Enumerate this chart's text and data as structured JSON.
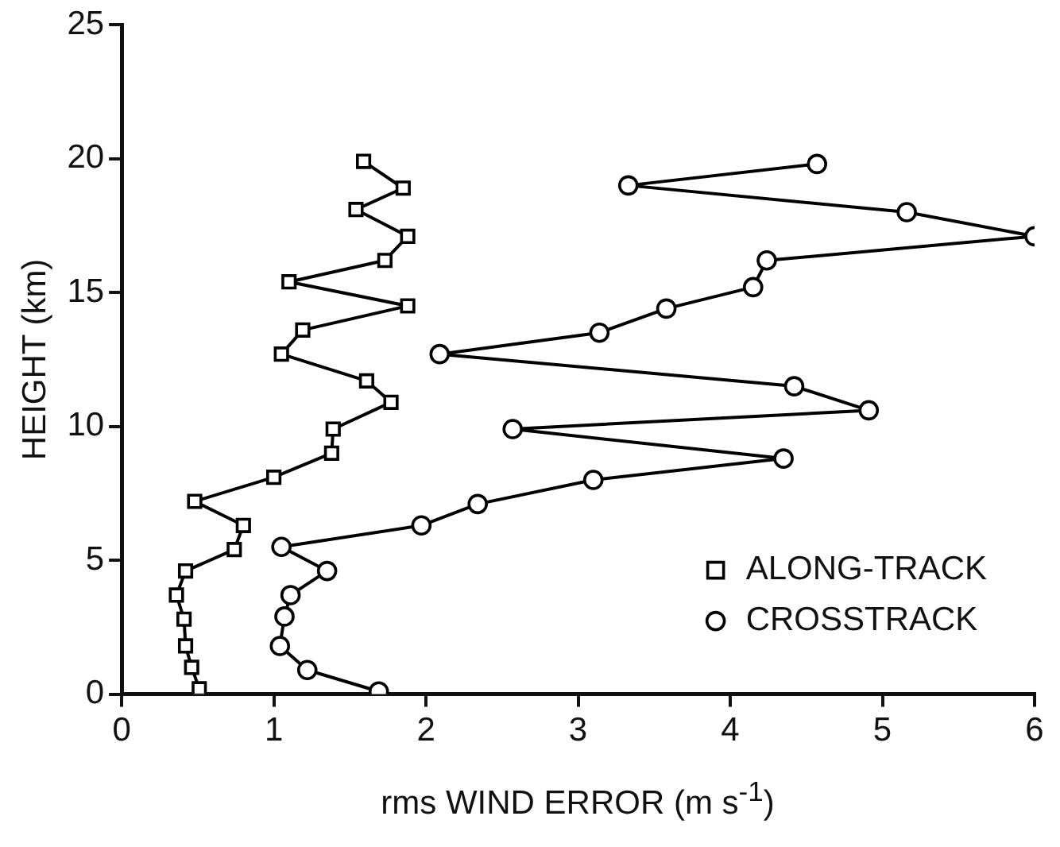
{
  "chart_data": {
    "type": "line",
    "xlabel": "rms WIND ERROR (m s$^{-1}$)",
    "ylabel": "HEIGHT (km)",
    "xlim": [
      0,
      6
    ],
    "xticks": [
      0,
      1,
      2,
      3,
      4,
      5,
      6
    ],
    "ylim": [
      0,
      25
    ],
    "yticks": [
      0,
      5,
      10,
      15,
      20,
      25
    ],
    "grid": false,
    "legend": "bottom right",
    "line_style": "solid",
    "series": [
      {
        "name": "ALONG-TRACK",
        "color": "#000000",
        "marker": "square",
        "x": [
          0.51,
          0.46,
          0.42,
          0.41,
          0.36,
          0.42,
          0.74,
          0.8,
          0.48,
          1.0,
          1.38,
          1.39,
          1.77,
          1.61,
          1.05,
          1.19,
          1.88,
          1.1,
          1.73,
          1.88,
          1.54,
          1.85,
          1.59
        ],
        "values": [
          0.2,
          1.0,
          1.8,
          2.8,
          3.7,
          4.6,
          5.4,
          6.3,
          7.2,
          8.1,
          9.0,
          9.9,
          10.9,
          11.7,
          12.7,
          13.6,
          14.5,
          15.4,
          16.2,
          17.1,
          18.1,
          18.9,
          19.9
        ]
      },
      {
        "name": "CROSSTRACK",
        "color": "#000000",
        "marker": "circle",
        "x": [
          1.69,
          1.22,
          1.04,
          1.07,
          1.11,
          1.35,
          1.05,
          1.97,
          2.34,
          3.1,
          4.35,
          2.57,
          4.91,
          4.42,
          2.09,
          3.14,
          3.58,
          4.15,
          4.24,
          6.0,
          5.16,
          3.33,
          4.57
        ],
        "values": [
          0.1,
          0.9,
          1.8,
          2.9,
          3.7,
          4.6,
          5.5,
          6.3,
          7.1,
          8.0,
          8.8,
          9.9,
          10.6,
          11.5,
          12.7,
          13.5,
          14.4,
          15.2,
          16.2,
          17.1,
          18.0,
          19.0,
          19.8
        ]
      }
    ]
  }
}
